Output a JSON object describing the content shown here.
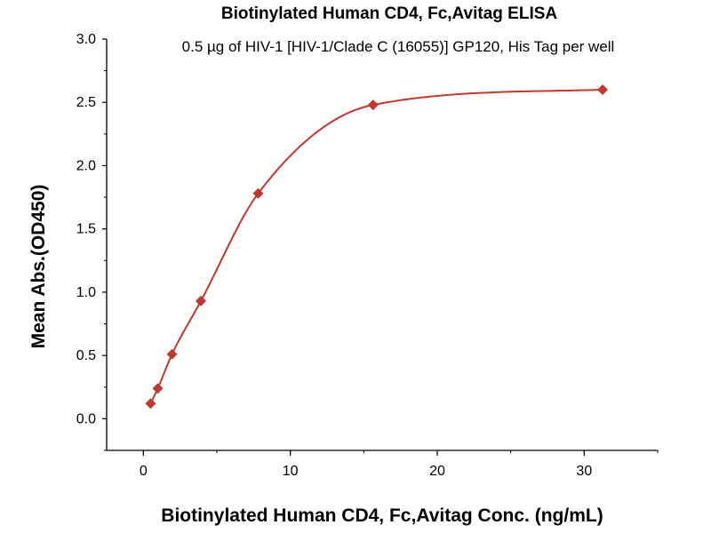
{
  "chart_data": {
    "type": "scatter",
    "title": "Biotinylated Human CD4, Fc,Avitag ELISA",
    "subtitle": "0.5 µg of HIV-1 [HIV-1/Clade C (16055)] GP120, His Tag per well",
    "xlabel": "Biotinylated Human CD4, Fc,Avitag Conc. (ng/mL)",
    "ylabel": "Mean Abs.(OD450)",
    "xlim": [
      -2.5,
      35
    ],
    "ylim": [
      -0.25,
      3.0
    ],
    "x_ticks": [
      0,
      10,
      20,
      30
    ],
    "x_tick_labels": [
      "0",
      "10",
      "20",
      "30"
    ],
    "y_ticks": [
      0.0,
      0.5,
      1.0,
      1.5,
      2.0,
      2.5,
      3.0
    ],
    "y_tick_labels": [
      "0.0",
      "0.5",
      "1.0",
      "1.5",
      "2.0",
      "2.5",
      "3.0"
    ],
    "grid": false,
    "legend": "none",
    "series": [
      {
        "x": [
          0.49,
          0.98,
          1.95,
          3.91,
          7.81,
          15.63,
          31.25
        ],
        "values": [
          0.12,
          0.24,
          0.51,
          0.93,
          1.78,
          2.48,
          2.6
        ],
        "marker": "diamond",
        "fit_line": true,
        "color": "#c0392f"
      }
    ]
  }
}
